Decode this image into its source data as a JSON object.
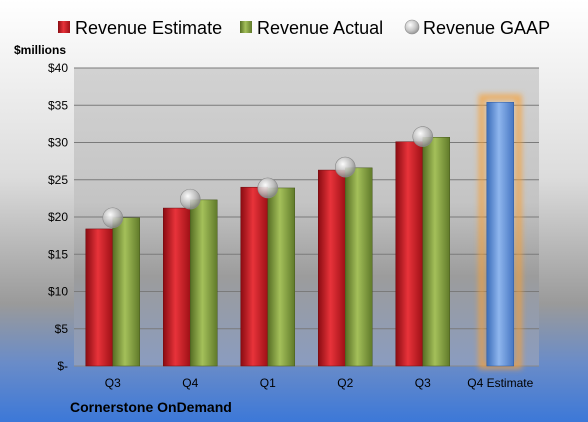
{
  "chart_data": {
    "type": "bar",
    "categories": [
      "Q3",
      "Q4",
      "Q1",
      "Q2",
      "Q3",
      "Q4 Estimate"
    ],
    "series": [
      {
        "name": "Revenue Estimate",
        "values": [
          18.4,
          21.2,
          24.0,
          26.3,
          30.1,
          null
        ],
        "color": "#c8141e"
      },
      {
        "name": "Revenue Actual",
        "values": [
          19.9,
          22.3,
          23.9,
          26.6,
          30.7,
          null
        ],
        "color": "#7c9a3a"
      },
      {
        "name": "Revenue GAAP",
        "type": "scatter",
        "values": [
          19.9,
          22.4,
          23.9,
          26.7,
          30.8,
          null
        ],
        "color": "#b4b4b4"
      },
      {
        "name": "",
        "values": [
          null,
          null,
          null,
          null,
          null,
          35.4
        ],
        "color": "#5b8fd6"
      }
    ],
    "y_unit": "$millions",
    "y_ticks": [
      "$-",
      "$5",
      "$10",
      "$15",
      "$20",
      "$25",
      "$30",
      "$35",
      "$40"
    ],
    "ylim": [
      0,
      40
    ],
    "grid": true,
    "legend": "top",
    "highlight_color": "#f7a035"
  },
  "footer": {
    "company": "Cornerstone OnDemand"
  }
}
